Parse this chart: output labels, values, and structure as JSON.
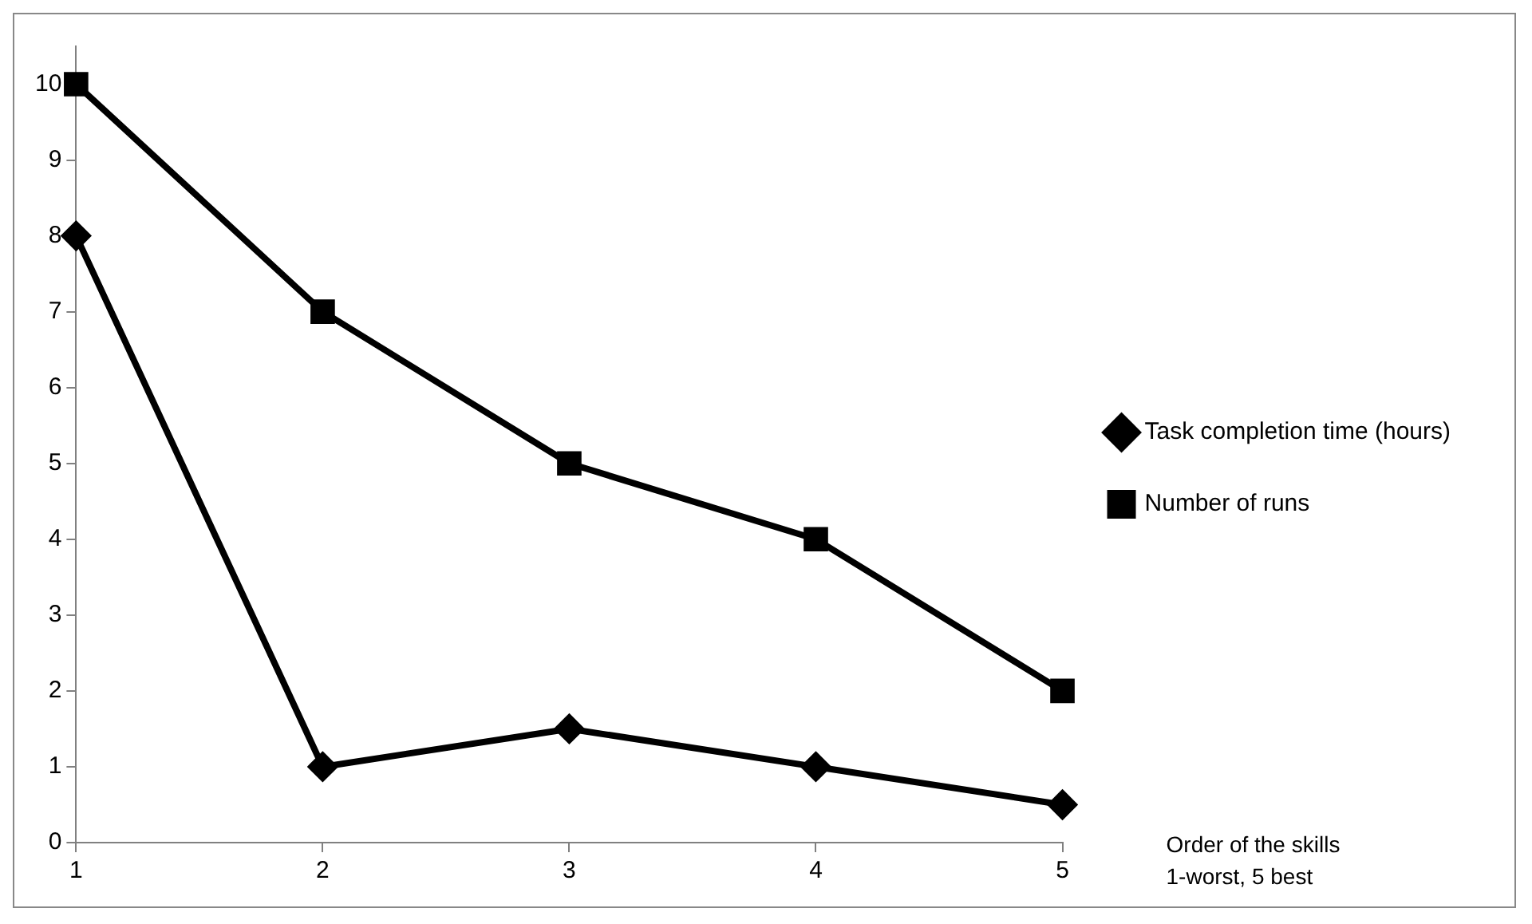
{
  "chart_data": {
    "type": "line",
    "categories": [
      "1",
      "2",
      "3",
      "4",
      "5"
    ],
    "series": [
      {
        "name": "Task completion time (hours)",
        "color": "#000000",
        "marker": "diamond",
        "values": [
          8,
          1,
          1.5,
          1,
          0.5
        ]
      },
      {
        "name": "Number of runs",
        "color": "#000000",
        "marker": "square",
        "values": [
          10,
          7,
          5,
          4,
          2
        ]
      }
    ],
    "ylim": [
      0,
      10.5
    ],
    "yticks": [
      0,
      1,
      2,
      3,
      4,
      5,
      6,
      7,
      8,
      9,
      10
    ],
    "grid": false,
    "legend": "right",
    "line_style": "solid",
    "annotations": [
      "Order of the skills",
      "1-worst, 5 best"
    ]
  }
}
